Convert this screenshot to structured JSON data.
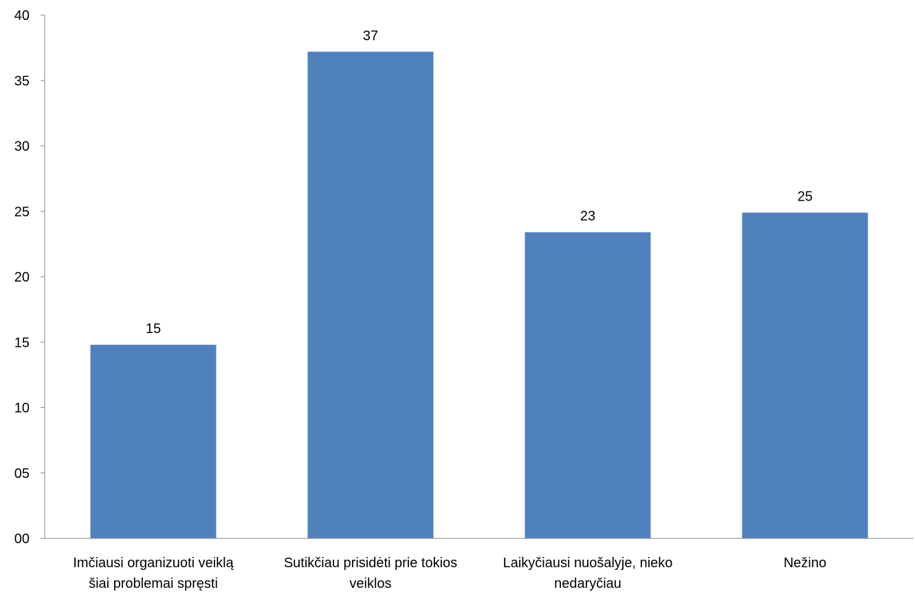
{
  "chart_data": {
    "type": "bar",
    "categories": [
      [
        "Imčiausi organizuoti veiklą",
        "šiai problemai spręsti"
      ],
      [
        "Sutikčiau prisidėti prie tokios",
        "veiklos"
      ],
      [
        "Laikyčiausi nuošalyje, nieko",
        "nedaryčiau"
      ],
      [
        "Nežino"
      ]
    ],
    "values": [
      14.8,
      37.2,
      23.4,
      24.9
    ],
    "data_labels": [
      "15",
      "37",
      "23",
      "25"
    ],
    "ylim": [
      0,
      40
    ],
    "y_ticks": [
      "00",
      "05",
      "10",
      "15",
      "20",
      "25",
      "30",
      "35",
      "40"
    ],
    "title": "",
    "xlabel": "",
    "ylabel": "",
    "grid": false,
    "legend": "none",
    "bar_color": "#4F81BD",
    "axis_color": "#868686"
  }
}
